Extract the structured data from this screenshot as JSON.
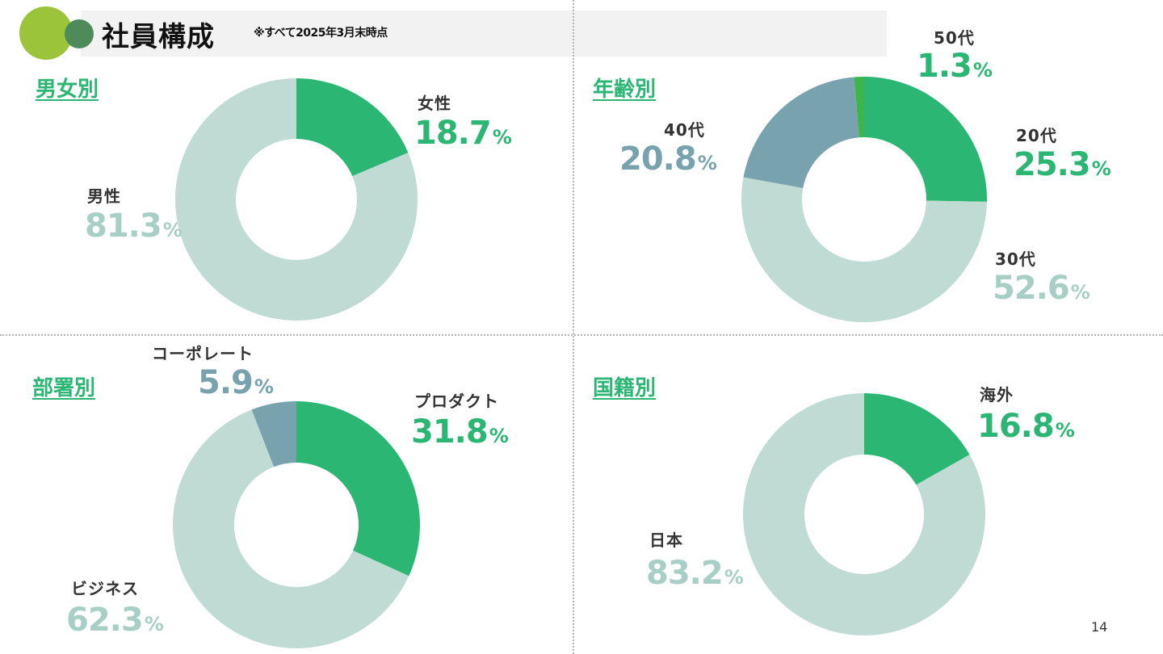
{
  "header": {
    "title": "社員構成",
    "note": "※すべて2025年3月末時点"
  },
  "page_number": "14",
  "colors": {
    "green": "#2bb673",
    "pale": "#c0dbd4",
    "slate": "#78a3ae",
    "bright_green": "#3cb54a"
  },
  "chart_data": [
    {
      "type": "pie",
      "donut": true,
      "title": "男女別",
      "slices": [
        {
          "label": "女性",
          "value": 18.7,
          "unit": "%",
          "color": "#2bb673"
        },
        {
          "label": "男性",
          "value": 81.3,
          "unit": "%",
          "color": "#c0dbd4"
        }
      ]
    },
    {
      "type": "pie",
      "donut": true,
      "title": "年齢別",
      "slices": [
        {
          "label": "20代",
          "value": 25.3,
          "unit": "%",
          "color": "#2bb673"
        },
        {
          "label": "30代",
          "value": 52.6,
          "unit": "%",
          "color": "#c0dbd4"
        },
        {
          "label": "40代",
          "value": 20.8,
          "unit": "%",
          "color": "#78a3ae"
        },
        {
          "label": "50代",
          "value": 1.3,
          "unit": "%",
          "color": "#3cb54a"
        }
      ]
    },
    {
      "type": "pie",
      "donut": true,
      "title": "部署別",
      "slices": [
        {
          "label": "プロダクト",
          "value": 31.8,
          "unit": "%",
          "color": "#2bb673"
        },
        {
          "label": "ビジネス",
          "value": 62.3,
          "unit": "%",
          "color": "#c0dbd4"
        },
        {
          "label": "コーポレート",
          "value": 5.9,
          "unit": "%",
          "color": "#78a3ae"
        }
      ]
    },
    {
      "type": "pie",
      "donut": true,
      "title": "国籍別",
      "slices": [
        {
          "label": "海外",
          "value": 16.8,
          "unit": "%",
          "color": "#2bb673"
        },
        {
          "label": "日本",
          "value": 83.2,
          "unit": "%",
          "color": "#c0dbd4"
        }
      ]
    }
  ]
}
